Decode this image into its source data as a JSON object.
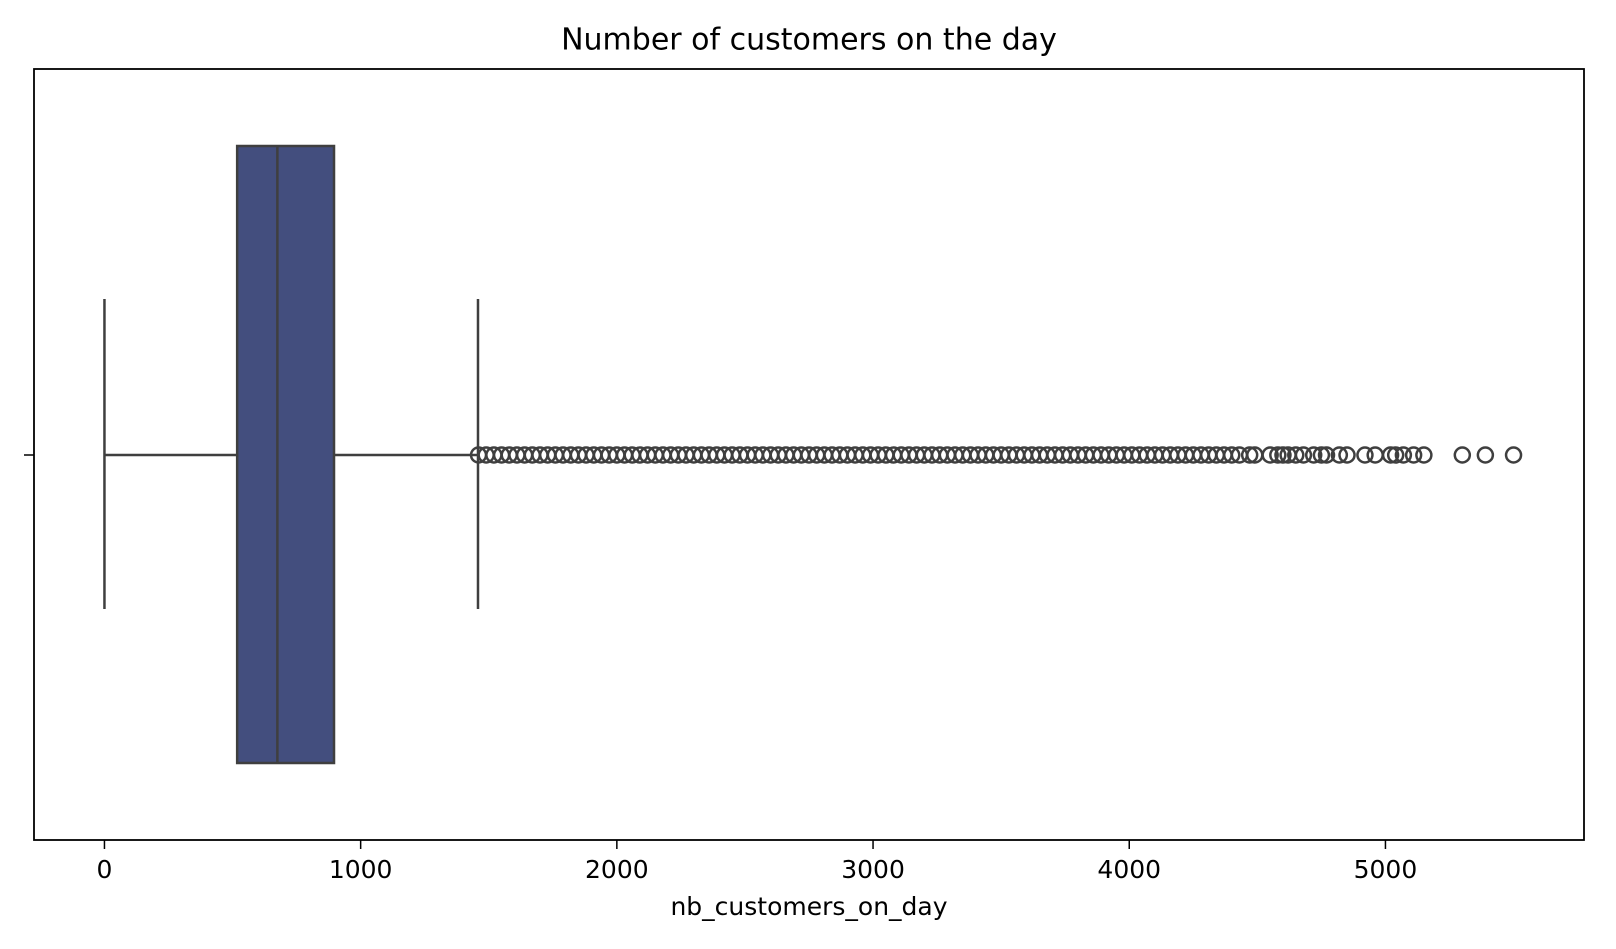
{
  "chart_data": {
    "type": "box",
    "title": "Number of customers on the day",
    "xlabel": "nb_customers_on_day",
    "xlim": [
      -275,
      5775
    ],
    "xticks": [
      0,
      1000,
      2000,
      3000,
      4000,
      5000
    ],
    "color": "#434e7e",
    "line_color": "#3f3f3f",
    "box": {
      "whislo": 0,
      "q1": 518,
      "median": 675,
      "q3": 896,
      "whishi": 1458,
      "fliers": [
        1460,
        1490,
        1520,
        1550,
        1580,
        1610,
        1640,
        1670,
        1700,
        1730,
        1760,
        1790,
        1820,
        1850,
        1880,
        1910,
        1940,
        1970,
        2000,
        2030,
        2060,
        2090,
        2120,
        2150,
        2180,
        2210,
        2240,
        2270,
        2300,
        2330,
        2360,
        2390,
        2420,
        2450,
        2480,
        2510,
        2540,
        2570,
        2600,
        2630,
        2660,
        2690,
        2720,
        2750,
        2780,
        2810,
        2840,
        2870,
        2900,
        2930,
        2960,
        2990,
        3020,
        3050,
        3080,
        3110,
        3140,
        3170,
        3200,
        3230,
        3260,
        3290,
        3320,
        3350,
        3380,
        3410,
        3440,
        3470,
        3500,
        3530,
        3560,
        3590,
        3620,
        3650,
        3680,
        3710,
        3740,
        3770,
        3800,
        3830,
        3860,
        3890,
        3920,
        3950,
        3980,
        4010,
        4040,
        4070,
        4100,
        4130,
        4160,
        4190,
        4220,
        4250,
        4280,
        4310,
        4340,
        4370,
        4400,
        4430,
        4470,
        4490,
        4550,
        4580,
        4600,
        4620,
        4650,
        4680,
        4720,
        4750,
        4770,
        4820,
        4850,
        4920,
        4960,
        5020,
        5040,
        5070,
        5110,
        5150,
        5300,
        5390,
        5500
      ]
    }
  }
}
